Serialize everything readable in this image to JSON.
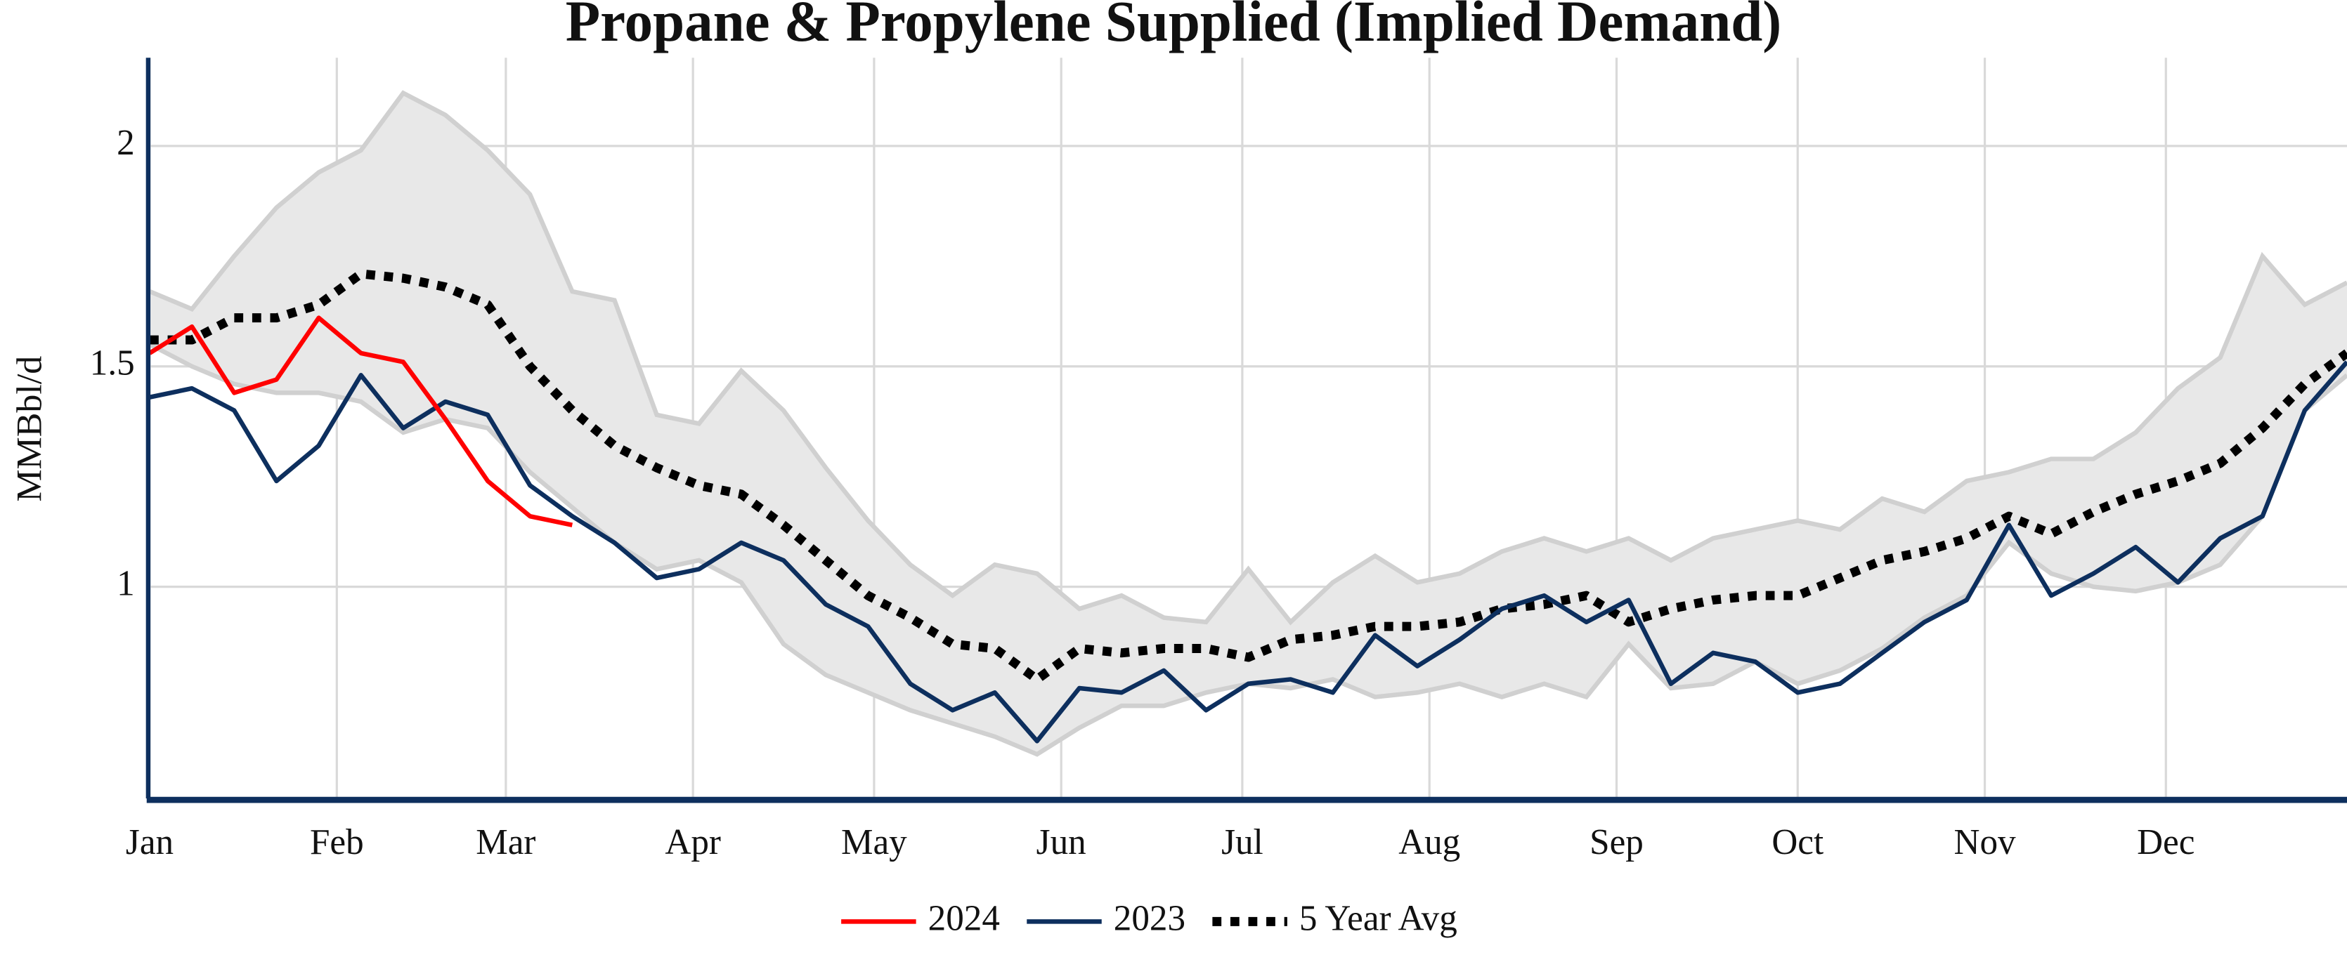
{
  "chart_data": {
    "type": "line",
    "title": "Propane & Propylene Supplied (Implied Demand)",
    "y_label": "MMBbl/d",
    "x": [
      0,
      7,
      14,
      21,
      28,
      35,
      42,
      49,
      56,
      63,
      70,
      77,
      84,
      91,
      98,
      105,
      112,
      119,
      126,
      133,
      140,
      147,
      154,
      161,
      168,
      175,
      182,
      189,
      196,
      203,
      210,
      217,
      224,
      231,
      238,
      245,
      252,
      259,
      266,
      273,
      280,
      287,
      294,
      301,
      308,
      315,
      322,
      329,
      336,
      343,
      350,
      357,
      364
    ],
    "xlim": [
      0,
      364
    ],
    "xticks": [
      {
        "value": 0,
        "label": "Jan"
      },
      {
        "value": 31,
        "label": "Feb"
      },
      {
        "value": 59,
        "label": "Mar"
      },
      {
        "value": 90,
        "label": "Apr"
      },
      {
        "value": 120,
        "label": "May"
      },
      {
        "value": 151,
        "label": "Jun"
      },
      {
        "value": 181,
        "label": "Jul"
      },
      {
        "value": 212,
        "label": "Aug"
      },
      {
        "value": 243,
        "label": "Sep"
      },
      {
        "value": 273,
        "label": "Oct"
      },
      {
        "value": 304,
        "label": "Nov"
      },
      {
        "value": 334,
        "label": "Dec"
      }
    ],
    "ylim": [
      0.52,
      2.2
    ],
    "yticks": [
      1,
      1.5,
      2
    ],
    "grid": true,
    "legend": "bottom",
    "band": {
      "color": "#e8e8e8",
      "edge_color": "#d0d0d0",
      "high": [
        1.67,
        1.63,
        1.75,
        1.86,
        1.94,
        1.99,
        2.12,
        2.07,
        1.99,
        1.89,
        1.67,
        1.65,
        1.39,
        1.37,
        1.49,
        1.4,
        1.27,
        1.15,
        1.05,
        0.98,
        1.05,
        1.03,
        0.95,
        0.98,
        0.93,
        0.92,
        1.04,
        0.92,
        1.01,
        1.07,
        1.01,
        1.03,
        1.08,
        1.11,
        1.08,
        1.11,
        1.06,
        1.11,
        1.13,
        1.15,
        1.13,
        1.2,
        1.17,
        1.24,
        1.26,
        1.29,
        1.29,
        1.35,
        1.45,
        1.52,
        1.75,
        1.64,
        1.69
      ],
      "low": [
        1.55,
        1.5,
        1.46,
        1.44,
        1.44,
        1.42,
        1.35,
        1.38,
        1.36,
        1.26,
        1.18,
        1.1,
        1.04,
        1.06,
        1.01,
        0.87,
        0.8,
        0.76,
        0.72,
        0.69,
        0.66,
        0.62,
        0.68,
        0.73,
        0.73,
        0.76,
        0.78,
        0.77,
        0.79,
        0.75,
        0.76,
        0.78,
        0.75,
        0.78,
        0.75,
        0.87,
        0.77,
        0.78,
        0.83,
        0.78,
        0.81,
        0.86,
        0.93,
        0.98,
        1.1,
        1.03,
        1.0,
        0.99,
        1.01,
        1.05,
        1.16,
        1.4,
        1.48
      ]
    },
    "series": [
      {
        "name": "2024",
        "color": "#ff0000",
        "dash": false,
        "values": [
          1.53,
          1.59,
          1.44,
          1.47,
          1.61,
          1.53,
          1.51,
          1.38,
          1.24,
          1.16,
          1.14,
          null,
          null,
          null,
          null,
          null,
          null,
          null,
          null,
          null,
          null,
          null,
          null,
          null,
          null,
          null,
          null,
          null,
          null,
          null,
          null,
          null,
          null,
          null,
          null,
          null,
          null,
          null,
          null,
          null,
          null,
          null,
          null,
          null,
          null,
          null,
          null,
          null,
          null,
          null,
          null,
          null,
          null
        ]
      },
      {
        "name": "2023",
        "color": "#0d2f5e",
        "dash": false,
        "values": [
          1.43,
          1.45,
          1.4,
          1.24,
          1.32,
          1.48,
          1.36,
          1.42,
          1.39,
          1.23,
          1.16,
          1.1,
          1.02,
          1.04,
          1.1,
          1.06,
          0.96,
          0.91,
          0.78,
          0.72,
          0.76,
          0.65,
          0.77,
          0.76,
          0.81,
          0.72,
          0.78,
          0.79,
          0.76,
          0.89,
          0.82,
          0.88,
          0.95,
          0.98,
          0.92,
          0.97,
          0.78,
          0.85,
          0.83,
          0.76,
          0.78,
          0.85,
          0.92,
          0.97,
          1.14,
          0.98,
          1.03,
          1.09,
          1.01,
          1.11,
          1.16,
          1.4,
          1.51
        ]
      },
      {
        "name": "5 Year Avg",
        "color": "#000000",
        "dash": true,
        "values": [
          1.56,
          1.56,
          1.61,
          1.61,
          1.64,
          1.71,
          1.7,
          1.68,
          1.64,
          1.5,
          1.4,
          1.32,
          1.27,
          1.23,
          1.21,
          1.14,
          1.06,
          0.98,
          0.93,
          0.87,
          0.86,
          0.79,
          0.86,
          0.85,
          0.86,
          0.86,
          0.84,
          0.88,
          0.89,
          0.91,
          0.91,
          0.92,
          0.95,
          0.96,
          0.98,
          0.92,
          0.95,
          0.97,
          0.98,
          0.98,
          1.02,
          1.06,
          1.08,
          1.11,
          1.16,
          1.12,
          1.17,
          1.21,
          1.24,
          1.28,
          1.36,
          1.46,
          1.53
        ]
      }
    ]
  }
}
